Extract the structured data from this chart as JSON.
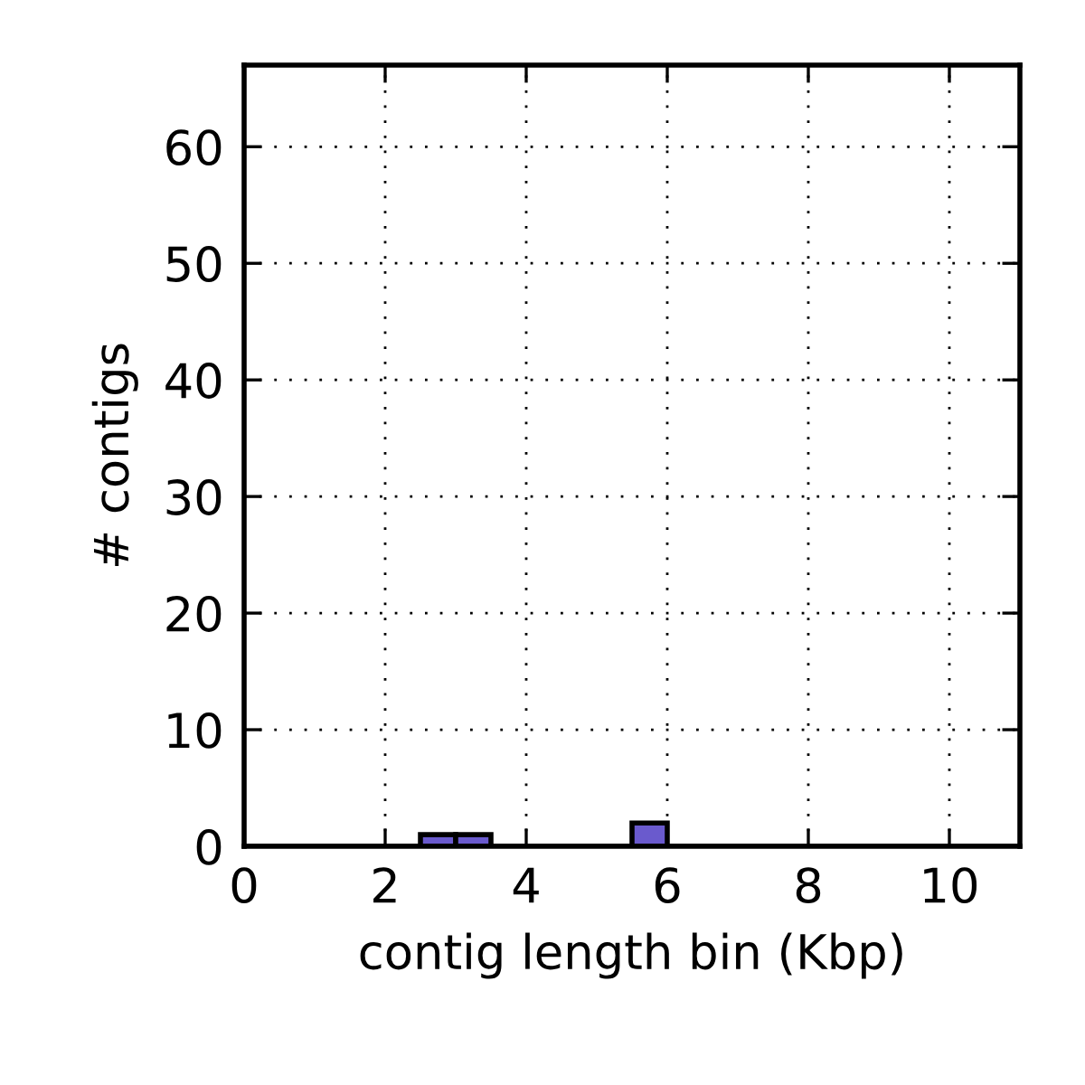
{
  "chart_data": {
    "type": "histogram",
    "xlabel": "contig length bin (Kbp)",
    "ylabel": "# contigs",
    "bins": [
      0,
      0.5,
      1,
      1.5,
      2,
      2.5,
      3,
      3.5,
      4,
      4.5,
      5,
      5.5,
      6,
      6.5,
      7,
      7.5,
      8,
      8.5,
      9,
      9.5,
      10,
      10.5,
      11
    ],
    "values": [
      0,
      0,
      0,
      0,
      0,
      1,
      1,
      0,
      0,
      0,
      0,
      2,
      0,
      0,
      0,
      0,
      0,
      0,
      0,
      0,
      0,
      0
    ],
    "color": "#6a5acd",
    "xlim": [
      0,
      11
    ],
    "ylim": [
      0,
      67
    ],
    "xticks": [
      0,
      2,
      4,
      6,
      8,
      10
    ],
    "yticks": [
      0,
      10,
      20,
      30,
      40,
      50,
      60
    ],
    "grid": true,
    "line_style": "dotted"
  }
}
